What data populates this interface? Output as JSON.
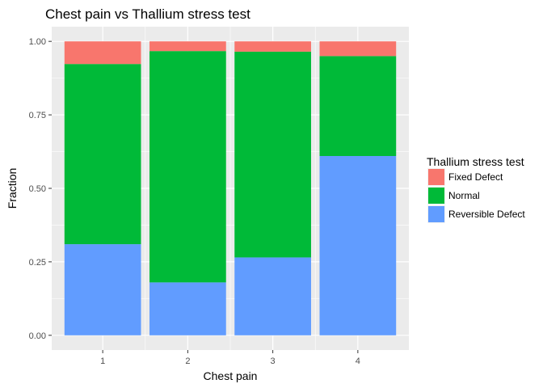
{
  "chart_data": {
    "type": "bar",
    "stacked": true,
    "title": "Chest pain vs Thallium stress test",
    "xlabel": "Chest pain",
    "ylabel": "Fraction",
    "categories": [
      "1",
      "2",
      "3",
      "4"
    ],
    "ylim": [
      0,
      1
    ],
    "yticks": [
      "0.00",
      "0.25",
      "0.50",
      "0.75",
      "1.00"
    ],
    "grid": true,
    "legend": {
      "title": "Thallium stress test",
      "position": "right"
    },
    "series": [
      {
        "name": "Reversible Defect",
        "color": "#619CFF",
        "values": [
          0.31,
          0.18,
          0.265,
          0.61
        ]
      },
      {
        "name": "Normal",
        "color": "#00BA38",
        "values": [
          0.613,
          0.787,
          0.7,
          0.34
        ]
      },
      {
        "name": "Fixed Defect",
        "color": "#F8766D",
        "values": [
          0.077,
          0.033,
          0.035,
          0.05
        ]
      }
    ]
  }
}
